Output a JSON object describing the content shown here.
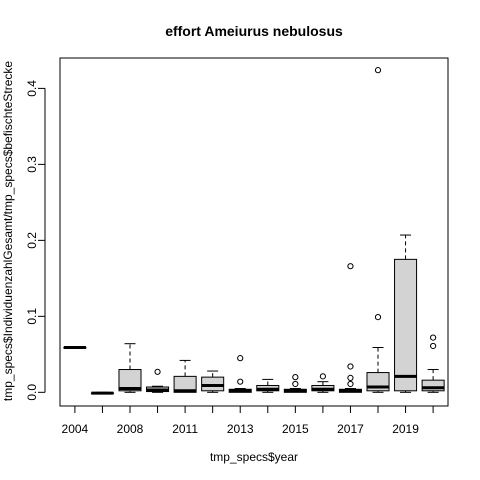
{
  "chart_data": {
    "type": "boxplot",
    "title": "effort Ameiurus nebulosus",
    "xlabel": "tmp_specs$year",
    "ylabel": "tmp_specs$IndividuenzahlGesamt/tmp_specs$befischteStrecke",
    "ylim": [
      -0.018,
      0.44
    ],
    "yticks": [
      0.0,
      0.1,
      0.2,
      0.3,
      0.4
    ],
    "yticklabels": [
      "0.0",
      "0.1",
      "0.2",
      "0.3",
      "0.4"
    ],
    "categories": [
      "2004",
      "2007",
      "2008",
      "2009",
      "2011",
      "2012",
      "2013",
      "2014",
      "2015",
      "2016",
      "2017",
      "2018",
      "2019",
      "2020"
    ],
    "xticklabels": [
      "2004",
      "",
      "2008",
      "",
      "2011",
      "",
      "2013",
      "",
      "2015",
      "",
      "2017",
      "",
      "2019",
      ""
    ],
    "box_fill": "#d3d3d3",
    "boxes": [
      {
        "year": "2004",
        "whislo": 0.059,
        "q1": 0.059,
        "med": 0.059,
        "q3": 0.059,
        "whishi": 0.059,
        "outliers": []
      },
      {
        "year": "2007",
        "whislo": -0.001,
        "q1": -0.001,
        "med": -0.001,
        "q3": -0.001,
        "whishi": 0.0,
        "outliers": []
      },
      {
        "year": "2008",
        "whislo": 0.0,
        "q1": 0.002,
        "med": 0.005,
        "q3": 0.03,
        "whishi": 0.064,
        "outliers": []
      },
      {
        "year": "2009",
        "whislo": 0.0,
        "q1": 0.001,
        "med": 0.003,
        "q3": 0.007,
        "whishi": 0.008,
        "outliers": [
          0.027
        ]
      },
      {
        "year": "2011",
        "whislo": 0.0,
        "q1": 0.0,
        "med": 0.002,
        "q3": 0.021,
        "whishi": 0.042,
        "outliers": []
      },
      {
        "year": "2012",
        "whislo": 0.0,
        "q1": 0.002,
        "med": 0.009,
        "q3": 0.02,
        "whishi": 0.028,
        "outliers": []
      },
      {
        "year": "2013",
        "whislo": 0.0,
        "q1": 0.0,
        "med": 0.002,
        "q3": 0.004,
        "whishi": 0.005,
        "outliers": [
          0.014,
          0.045
        ]
      },
      {
        "year": "2014",
        "whislo": 0.0,
        "q1": 0.002,
        "med": 0.004,
        "q3": 0.009,
        "whishi": 0.017,
        "outliers": []
      },
      {
        "year": "2015",
        "whislo": 0.0,
        "q1": 0.0,
        "med": 0.002,
        "q3": 0.004,
        "whishi": 0.005,
        "outliers": [
          0.011,
          0.02
        ]
      },
      {
        "year": "2016",
        "whislo": 0.0,
        "q1": 0.002,
        "med": 0.004,
        "q3": 0.009,
        "whishi": 0.014,
        "outliers": [
          0.021
        ]
      },
      {
        "year": "2017",
        "whislo": 0.0,
        "q1": 0.0,
        "med": 0.002,
        "q3": 0.004,
        "whishi": 0.005,
        "outliers": [
          0.011,
          0.019,
          0.034,
          0.166
        ]
      },
      {
        "year": "2018",
        "whislo": 0.0,
        "q1": 0.002,
        "med": 0.007,
        "q3": 0.026,
        "whishi": 0.059,
        "outliers": [
          0.099,
          0.424
        ]
      },
      {
        "year": "2019",
        "whislo": 0.0,
        "q1": 0.002,
        "med": 0.021,
        "q3": 0.175,
        "whishi": 0.207,
        "outliers": []
      },
      {
        "year": "2020",
        "whislo": 0.0,
        "q1": 0.002,
        "med": 0.006,
        "q3": 0.016,
        "whishi": 0.03,
        "outliers": [
          0.061,
          0.072
        ]
      }
    ]
  }
}
